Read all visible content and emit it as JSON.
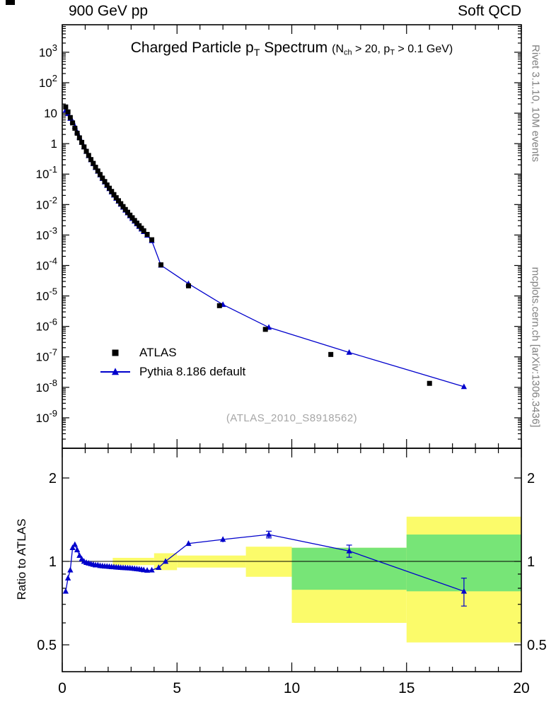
{
  "header": {
    "left": "900 GeV pp",
    "right": "Soft QCD"
  },
  "side_notes": {
    "top_right": "Rivet 3.1.10,  10M events",
    "bottom_right": "mcplots.cern.ch [arXiv:1306.3436]"
  },
  "main_panel": {
    "title": {
      "pre": "Charged Particle p",
      "sub": "T",
      "post": " Spectrum"
    },
    "subtitle": {
      "p1": "(N",
      "s1": "ch",
      "p2": " > 20, p",
      "s2": "T",
      "p3": " > 0.1 GeV)"
    },
    "legend": [
      {
        "label": "ATLAS",
        "marker": "black-square"
      },
      {
        "label": "Pythia 8.186 default",
        "marker": "blue-line-triangle"
      }
    ],
    "watermark": "(ATLAS_2010_S8918562)"
  },
  "ratio_panel": {
    "ylabel": "Ratio to ATLAS"
  },
  "colors": {
    "blue": "#0000cc",
    "black": "#000000",
    "band_yellow": "#fbfb6a",
    "band_green": "#77e577",
    "gray_note": "#808080",
    "gray_watermark": "#a6a6a6"
  },
  "chart_data": {
    "type": "line",
    "title": "Charged Particle pT Spectrum",
    "subtitle": "(Nch > 20, pT > 0.1 GeV)",
    "watermark": "(ATLAS_2010_S8918562)",
    "xlabel": "",
    "xlim": [
      0,
      20
    ],
    "x_ticks": [
      {
        "v": 0,
        "label": "0"
      },
      {
        "v": 5,
        "label": "5"
      },
      {
        "v": 10,
        "label": "10"
      },
      {
        "v": 15,
        "label": "15"
      },
      {
        "v": 20,
        "label": "20"
      }
    ],
    "x_minor_step": 1,
    "main": {
      "ylog": true,
      "ylim": [
        1e-10,
        8000
      ],
      "y_ticks": [
        {
          "v": 1000,
          "t": "10",
          "e": "3"
        },
        {
          "v": 100,
          "t": "10",
          "e": "2"
        },
        {
          "v": 10,
          "t": "10",
          "e": ""
        },
        {
          "v": 1,
          "t": "1",
          "e": ""
        },
        {
          "v": 0.1,
          "t": "10",
          "e": "-1"
        },
        {
          "v": 0.01,
          "t": "10",
          "e": "-2"
        },
        {
          "v": 0.001,
          "t": "10",
          "e": "-3"
        },
        {
          "v": 0.0001,
          "t": "10",
          "e": "-4"
        },
        {
          "v": 1e-05,
          "t": "10",
          "e": "-5"
        },
        {
          "v": 1e-06,
          "t": "10",
          "e": "-6"
        },
        {
          "v": 1e-07,
          "t": "10",
          "e": "-7"
        },
        {
          "v": 1e-08,
          "t": "10",
          "e": "-8"
        },
        {
          "v": 1e-09,
          "t": "10",
          "e": "-9"
        }
      ],
      "series": [
        {
          "name": "ATLAS",
          "marker": "square",
          "color": "#000000",
          "line": false,
          "x": [
            0.15,
            0.25,
            0.35,
            0.45,
            0.55,
            0.65,
            0.75,
            0.85,
            0.95,
            1.05,
            1.15,
            1.25,
            1.35,
            1.45,
            1.55,
            1.65,
            1.75,
            1.85,
            1.95,
            2.05,
            2.15,
            2.25,
            2.35,
            2.45,
            2.55,
            2.65,
            2.75,
            2.85,
            2.95,
            3.05,
            3.15,
            3.25,
            3.35,
            3.45,
            3.55,
            3.7,
            3.9,
            4.3,
            5.5,
            6.85,
            8.85,
            11.7,
            16.0
          ],
          "y": [
            16,
            11,
            7.2,
            4.8,
            3.2,
            2.2,
            1.55,
            1.1,
            0.78,
            0.56,
            0.41,
            0.3,
            0.225,
            0.168,
            0.127,
            0.097,
            0.074,
            0.057,
            0.044,
            0.0345,
            0.027,
            0.0213,
            0.0168,
            0.0134,
            0.0107,
            0.0086,
            0.0069,
            0.0056,
            0.0045,
            0.0037,
            0.003,
            0.00247,
            0.00203,
            0.00167,
            0.00138,
            0.00105,
            0.0007,
            0.000105,
            2.15e-05,
            4.8e-06,
            8e-07,
            1.2e-07,
            1.35e-08
          ]
        },
        {
          "name": "Pythia 8.186 default",
          "marker": "triangle",
          "color": "#0000cc",
          "line": true,
          "x": [
            0.15,
            0.25,
            0.35,
            0.45,
            0.55,
            0.65,
            0.75,
            0.85,
            0.95,
            1.05,
            1.15,
            1.25,
            1.35,
            1.45,
            1.55,
            1.65,
            1.75,
            1.85,
            1.95,
            2.05,
            2.15,
            2.25,
            2.35,
            2.45,
            2.55,
            2.65,
            2.75,
            2.85,
            2.95,
            3.05,
            3.15,
            3.25,
            3.35,
            3.45,
            3.55,
            3.7,
            3.9,
            4.3,
            5.5,
            7.0,
            9.0,
            12.5,
            17.5
          ],
          "y": [
            12.5,
            9.6,
            6.7,
            5.4,
            3.7,
            2.42,
            1.63,
            1.12,
            0.78,
            0.55,
            0.4,
            0.294,
            0.219,
            0.163,
            0.123,
            0.0936,
            0.0713,
            0.0548,
            0.0422,
            0.0331,
            0.0258,
            0.0203,
            0.016,
            0.0128,
            0.0102,
            0.00816,
            0.00654,
            0.0053,
            0.00426,
            0.00349,
            0.00283,
            0.00232,
            0.0019,
            0.00156,
            0.00129,
            0.00098,
            0.00065,
            0.000102,
            2.52e-05,
            5.2e-06,
            9.3e-07,
            1.4e-07,
            1.05e-08
          ]
        }
      ]
    },
    "ratio": {
      "ylog": true,
      "ylabel": "Ratio to ATLAS",
      "ylim": [
        0.4,
        2.56
      ],
      "y_ticks": [
        {
          "v": 2,
          "label": "2"
        },
        {
          "v": 1,
          "label": "1"
        },
        {
          "v": 0.5,
          "label": "0.5"
        }
      ],
      "y_minor_ticks": [
        0.6,
        0.7,
        0.8,
        0.9
      ],
      "reference_line": 1,
      "bands": {
        "yellow": [
          {
            "x0": 2.2,
            "x1": 4.0,
            "lo": 0.97,
            "hi": 1.03
          },
          {
            "x0": 4.0,
            "x1": 5.0,
            "lo": 0.93,
            "hi": 1.07
          },
          {
            "x0": 5.0,
            "x1": 8.0,
            "lo": 0.95,
            "hi": 1.05
          },
          {
            "x0": 8.0,
            "x1": 10.0,
            "lo": 0.88,
            "hi": 1.13
          },
          {
            "x0": 10.0,
            "x1": 15.0,
            "lo": 0.6,
            "hi": 1.12
          },
          {
            "x0": 15.0,
            "x1": 20.0,
            "lo": 0.51,
            "hi": 1.45
          }
        ],
        "green": [
          {
            "x0": 10.0,
            "x1": 15.0,
            "lo": 0.79,
            "hi": 1.12
          },
          {
            "x0": 15.0,
            "x1": 20.0,
            "lo": 0.78,
            "hi": 1.25
          }
        ]
      },
      "series": {
        "name": "Pythia 8.186 default / ATLAS",
        "x": [
          0.15,
          0.25,
          0.35,
          0.45,
          0.55,
          0.65,
          0.75,
          0.85,
          0.95,
          1.05,
          1.15,
          1.25,
          1.35,
          1.45,
          1.55,
          1.65,
          1.75,
          1.85,
          1.95,
          2.05,
          2.15,
          2.25,
          2.35,
          2.45,
          2.55,
          2.65,
          2.75,
          2.85,
          2.95,
          3.05,
          3.15,
          3.25,
          3.35,
          3.45,
          3.55,
          3.7,
          3.9,
          4.2,
          4.5,
          5.5,
          7.0,
          9.0,
          12.5,
          17.5
        ],
        "y": [
          0.78,
          0.87,
          0.93,
          1.12,
          1.15,
          1.1,
          1.05,
          1.02,
          1.0,
          0.99,
          0.985,
          0.98,
          0.975,
          0.97,
          0.97,
          0.965,
          0.963,
          0.961,
          0.96,
          0.958,
          0.956,
          0.955,
          0.953,
          0.952,
          0.95,
          0.949,
          0.948,
          0.947,
          0.946,
          0.944,
          0.942,
          0.94,
          0.938,
          0.935,
          0.932,
          0.928,
          0.93,
          0.95,
          1.0,
          1.16,
          1.2,
          1.25,
          1.09,
          0.78
        ],
        "yerr": [
          0.012,
          0.012,
          0.012,
          0.012,
          0.012,
          0.01,
          0.01,
          0.01,
          0.01,
          0.01,
          0.01,
          0.01,
          0.01,
          0.01,
          0.01,
          0.01,
          0.01,
          0.01,
          0.01,
          0.01,
          0.01,
          0.01,
          0.01,
          0.01,
          0.01,
          0.01,
          0.01,
          0.01,
          0.01,
          0.01,
          0.012,
          0.012,
          0.013,
          0.013,
          0.014,
          0.015,
          0.016,
          0.018,
          0.02,
          0.022,
          0.028,
          0.035,
          0.055,
          0.09
        ]
      }
    }
  }
}
